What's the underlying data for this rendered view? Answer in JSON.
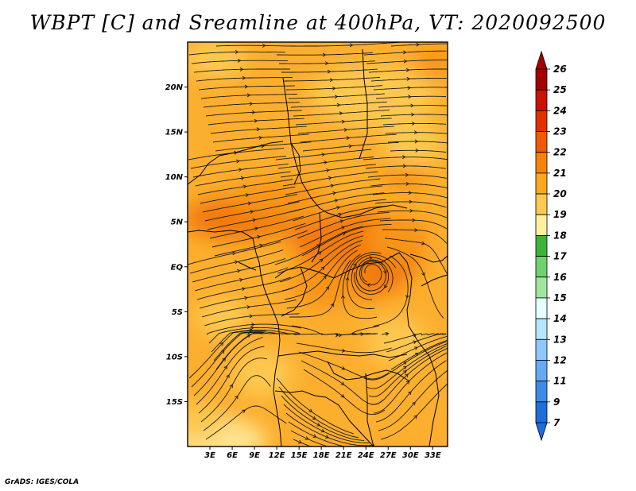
{
  "title": "WBPT [C] and Sreamline at 400hPa, VT: 2020092500",
  "footer": "GrADS: IGES/COLA",
  "map": {
    "lat_ticks": [
      "20N",
      "15N",
      "10N",
      "5N",
      "EQ",
      "5S",
      "10S",
      "15S"
    ],
    "lon_ticks": [
      "3E",
      "6E",
      "9E",
      "12E",
      "15E",
      "18E",
      "21E",
      "24E",
      "27E",
      "30E",
      "33E"
    ],
    "lat_values": [
      20,
      15,
      10,
      5,
      0,
      -5,
      -10,
      -15
    ],
    "lon_values": [
      3,
      6,
      9,
      12,
      15,
      18,
      21,
      24,
      27,
      30,
      33
    ],
    "lon_range": [
      0,
      35
    ],
    "lat_range": [
      -20,
      25
    ]
  },
  "colorbar": {
    "labels": [
      "26",
      "25",
      "24",
      "23",
      "22",
      "21",
      "20",
      "19",
      "18",
      "17",
      "16",
      "15",
      "14",
      "13",
      "12",
      "11",
      "9",
      "7"
    ],
    "colors": [
      "#a50000",
      "#c81400",
      "#e03200",
      "#f05a00",
      "#f88200",
      "#fca81e",
      "#fdc850",
      "#fff0a0",
      "#3cb43c",
      "#6ed26e",
      "#a0e6a0",
      "#e6ffff",
      "#b4e6ff",
      "#8cc8ff",
      "#64aaf5",
      "#3c8ce6",
      "#1e6edc"
    ],
    "top_arrow_color": "#a50000",
    "bottom_arrow_color": "#1e6edc"
  },
  "shading_colors": {
    "base": "#fcae2e",
    "light": "#fdc850",
    "pale": "#fee38f",
    "dark": "#f89412",
    "darker": "#f27a0a"
  }
}
